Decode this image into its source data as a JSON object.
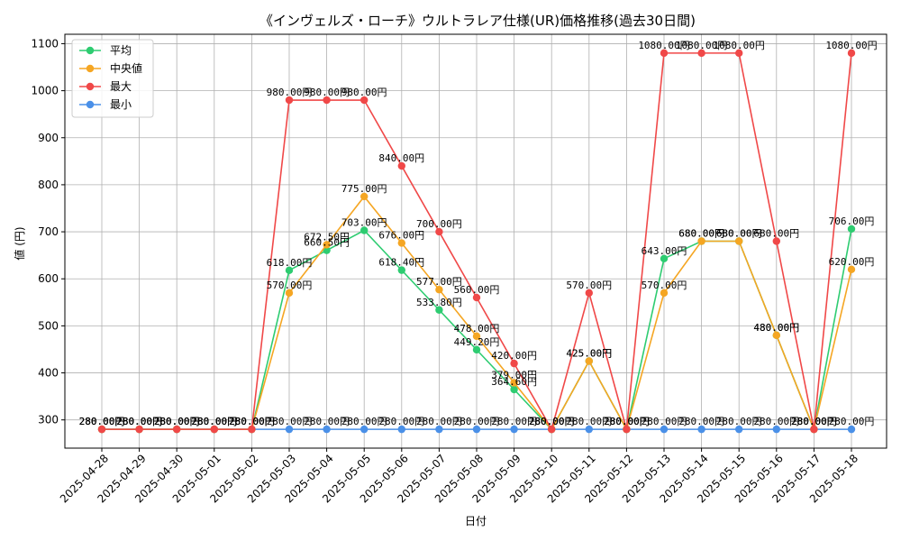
{
  "chart_data": {
    "type": "line",
    "title": "《インヴェルズ・ローチ》ウルトラレア仕様(UR)価格推移(過去30日間)",
    "xlabel": "日付",
    "ylabel": "値 (円)",
    "ylim": [
      240,
      1120
    ],
    "yticks": [
      300,
      400,
      500,
      600,
      700,
      800,
      900,
      1000,
      1100
    ],
    "grid": true,
    "legend_position": "top-left",
    "label_suffix": "円",
    "categories": [
      "2025-04-28",
      "2025-04-29",
      "2025-04-30",
      "2025-05-01",
      "2025-05-02",
      "2025-05-03",
      "2025-05-04",
      "2025-05-05",
      "2025-05-06",
      "2025-05-07",
      "2025-05-08",
      "2025-05-09",
      "2025-05-10",
      "2025-05-11",
      "2025-05-12",
      "2025-05-13",
      "2025-05-14",
      "2025-05-15",
      "2025-05-16",
      "2025-05-17",
      "2025-05-18"
    ],
    "series": [
      {
        "name": "平均",
        "color": "#2ecc71",
        "values": [
          280,
          280,
          280,
          280,
          280,
          618,
          660.5,
          703,
          618.4,
          533.8,
          449.2,
          364.6,
          280,
          425,
          280,
          643,
          680,
          680,
          480,
          280,
          706
        ]
      },
      {
        "name": "中央値",
        "color": "#f5a623",
        "values": [
          280,
          280,
          280,
          280,
          280,
          570,
          672.5,
          775,
          676,
          577,
          478,
          379,
          280,
          425,
          280,
          570,
          680,
          680,
          480,
          280,
          620
        ]
      },
      {
        "name": "最大",
        "color": "#f04848",
        "values": [
          280,
          280,
          280,
          280,
          280,
          980,
          980,
          980,
          840,
          700,
          560,
          420,
          280,
          570,
          280,
          1080,
          1080,
          1080,
          680,
          280,
          1080
        ]
      },
      {
        "name": "最小",
        "color": "#4a90e8",
        "values": [
          280,
          280,
          280,
          280,
          280,
          280,
          280,
          280,
          280,
          280,
          280,
          280,
          280,
          280,
          280,
          280,
          280,
          280,
          280,
          280,
          280
        ]
      }
    ]
  }
}
